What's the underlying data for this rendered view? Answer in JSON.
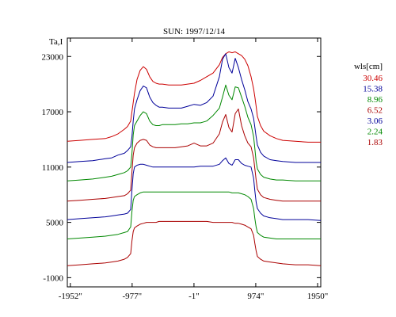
{
  "chart_data": {
    "type": "line",
    "title": "SUN: 1997/12/14",
    "ylabel": "Ta,I",
    "xlabel": "",
    "xlim": [
      -2000,
      2000
    ],
    "ylim": [
      -2000,
      25000
    ],
    "x_ticks": [
      {
        "value": -1952,
        "label": "-1952\""
      },
      {
        "value": -977,
        "label": "-977\""
      },
      {
        "value": -1,
        "label": "-1\""
      },
      {
        "value": 974,
        "label": "974\""
      },
      {
        "value": 1950,
        "label": "1950\""
      }
    ],
    "y_ticks": [
      {
        "value": -1000,
        "label": "-1000"
      },
      {
        "value": 5000,
        "label": "5000"
      },
      {
        "value": 11000,
        "label": "11000"
      },
      {
        "value": 17000,
        "label": "17000"
      },
      {
        "value": 23000,
        "label": "23000"
      }
    ],
    "grid": false,
    "legend_position": "right",
    "legend_title": "wls[cm]",
    "x": [
      -2000,
      -1800,
      -1600,
      -1400,
      -1300,
      -1200,
      -1100,
      -1050,
      -1000,
      -980,
      -960,
      -940,
      -900,
      -850,
      -800,
      -750,
      -700,
      -650,
      -600,
      -550,
      -500,
      -400,
      -300,
      -200,
      -100,
      0,
      100,
      200,
      300,
      400,
      450,
      500,
      550,
      600,
      650,
      700,
      750,
      800,
      850,
      900,
      940,
      960,
      980,
      1000,
      1050,
      1100,
      1200,
      1300,
      1400,
      1600,
      1800,
      2000
    ],
    "series": [
      {
        "name": "30.46",
        "color": "#cc0000",
        "values": [
          13800,
          13900,
          14000,
          14100,
          14300,
          14600,
          15100,
          15400,
          16000,
          17000,
          18000,
          19000,
          20500,
          21500,
          21900,
          21600,
          20800,
          20300,
          20100,
          20000,
          20000,
          19900,
          19900,
          19900,
          20000,
          20100,
          20400,
          20800,
          21200,
          22100,
          22900,
          23300,
          23500,
          23400,
          23500,
          23300,
          23100,
          22700,
          22000,
          20800,
          19500,
          18600,
          17600,
          16500,
          15500,
          14900,
          14400,
          14100,
          13900,
          13800,
          13700,
          13700
        ]
      },
      {
        "name": "15.38",
        "color": "#000099",
        "values": [
          11500,
          11600,
          11700,
          11900,
          12000,
          12300,
          12500,
          12800,
          13200,
          14300,
          16000,
          17300,
          18300,
          19300,
          19800,
          19600,
          18600,
          18000,
          17700,
          17500,
          17500,
          17400,
          17400,
          17400,
          17600,
          17800,
          17700,
          18000,
          18700,
          20800,
          22700,
          23300,
          21800,
          21200,
          22800,
          21800,
          20500,
          19400,
          18100,
          17300,
          16300,
          15300,
          14300,
          13400,
          12600,
          12200,
          11800,
          11700,
          11600,
          11500,
          11500,
          11500
        ]
      },
      {
        "name": "8.96",
        "color": "#008800",
        "values": [
          9500,
          9600,
          9700,
          9900,
          10000,
          10200,
          10400,
          10600,
          11000,
          12500,
          14500,
          15500,
          16000,
          16600,
          17000,
          16800,
          16000,
          15600,
          15500,
          15500,
          15600,
          15600,
          15600,
          15700,
          15700,
          15800,
          15800,
          16000,
          16600,
          17400,
          18600,
          19900,
          18800,
          18300,
          19700,
          19600,
          18600,
          17600,
          16400,
          15600,
          14300,
          13000,
          11600,
          10800,
          10200,
          9900,
          9700,
          9600,
          9600,
          9500,
          9500,
          9500
        ]
      },
      {
        "name": "6.52",
        "color": "#aa0000",
        "values": [
          7300,
          7400,
          7500,
          7600,
          7700,
          7800,
          7900,
          8100,
          8500,
          10500,
          12300,
          13100,
          13600,
          13900,
          14000,
          13900,
          13400,
          13200,
          13100,
          13100,
          13100,
          13100,
          13100,
          13200,
          13300,
          13600,
          13300,
          13300,
          13600,
          14600,
          15900,
          16700,
          15300,
          14800,
          16800,
          17300,
          15500,
          14400,
          13600,
          13200,
          12000,
          10800,
          9600,
          8600,
          8000,
          7700,
          7500,
          7400,
          7300,
          7300,
          7300,
          7300
        ]
      },
      {
        "name": "3.06",
        "color": "#000099",
        "values": [
          5300,
          5400,
          5500,
          5600,
          5700,
          5800,
          5900,
          6000,
          6400,
          8500,
          10300,
          11000,
          11200,
          11300,
          11300,
          11200,
          11100,
          11000,
          11000,
          11000,
          11000,
          11000,
          11000,
          11000,
          11000,
          11000,
          11100,
          11100,
          11100,
          11300,
          11700,
          12000,
          11400,
          11200,
          11800,
          11800,
          11400,
          11200,
          11100,
          11000,
          9800,
          8400,
          7200,
          6500,
          6000,
          5700,
          5500,
          5400,
          5300,
          5300,
          5300,
          5200
        ]
      },
      {
        "name": "2.24",
        "color": "#008800",
        "values": [
          3200,
          3300,
          3400,
          3500,
          3600,
          3700,
          3900,
          4000,
          4500,
          6200,
          7400,
          7800,
          8000,
          8200,
          8300,
          8300,
          8300,
          8300,
          8300,
          8300,
          8300,
          8300,
          8300,
          8300,
          8300,
          8300,
          8300,
          8300,
          8300,
          8300,
          8300,
          8300,
          8300,
          8200,
          8200,
          8200,
          8100,
          8000,
          7800,
          7500,
          6500,
          5400,
          4500,
          3900,
          3600,
          3400,
          3300,
          3200,
          3200,
          3200,
          3200,
          3200
        ]
      },
      {
        "name": "1.83",
        "color": "#aa0000",
        "values": [
          300,
          400,
          500,
          600,
          700,
          800,
          1000,
          1200,
          1600,
          3000,
          4000,
          4400,
          4600,
          4800,
          4900,
          5000,
          5000,
          5000,
          5000,
          5100,
          5100,
          5100,
          5100,
          5100,
          5100,
          5100,
          5100,
          5100,
          5000,
          5000,
          5000,
          5000,
          5000,
          5000,
          4900,
          4900,
          4800,
          4700,
          4500,
          4300,
          3600,
          2700,
          1900,
          1300,
          1000,
          800,
          700,
          600,
          500,
          400,
          400,
          300
        ]
      }
    ]
  }
}
